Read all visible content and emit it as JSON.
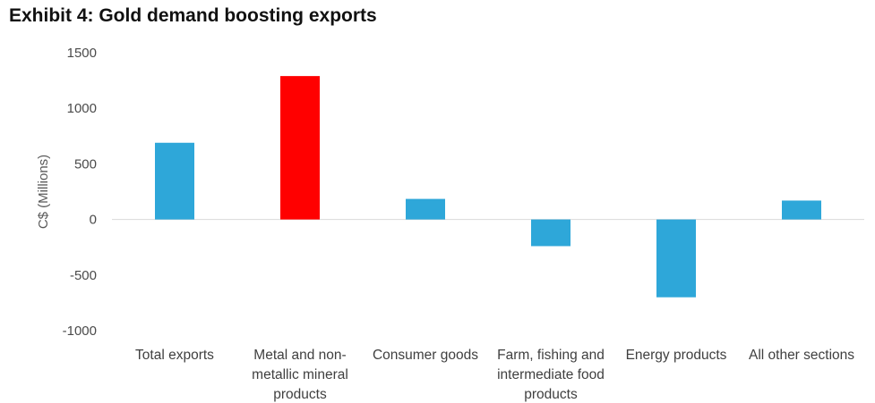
{
  "title": "Exhibit 4: Gold demand boosting exports",
  "chart_data": {
    "type": "bar",
    "title": "Exhibit 4: Gold demand boosting exports",
    "xlabel": "",
    "ylabel": "C$ (Millions)",
    "ylim": [
      -1000,
      1500
    ],
    "yticks": [
      -1000,
      -500,
      0,
      500,
      1000,
      1500
    ],
    "grid": false,
    "categories": [
      "Total exports",
      "Metal and non-metallic mineral products",
      "Consumer goods",
      "Farm, fishing and intermediate food products",
      "Energy products",
      "All other sections"
    ],
    "category_label_lines": [
      [
        "Total exports"
      ],
      [
        "Metal and non-",
        "metallic mineral",
        "products"
      ],
      [
        "Consumer goods"
      ],
      [
        "Farm, fishing and",
        "intermediate food",
        "products"
      ],
      [
        "Energy products"
      ],
      [
        "All other sections"
      ]
    ],
    "values": [
      690,
      1290,
      185,
      -240,
      -700,
      170
    ],
    "colors": [
      "#2ea7d9",
      "#ff0000",
      "#2ea7d9",
      "#2ea7d9",
      "#2ea7d9",
      "#2ea7d9"
    ]
  }
}
